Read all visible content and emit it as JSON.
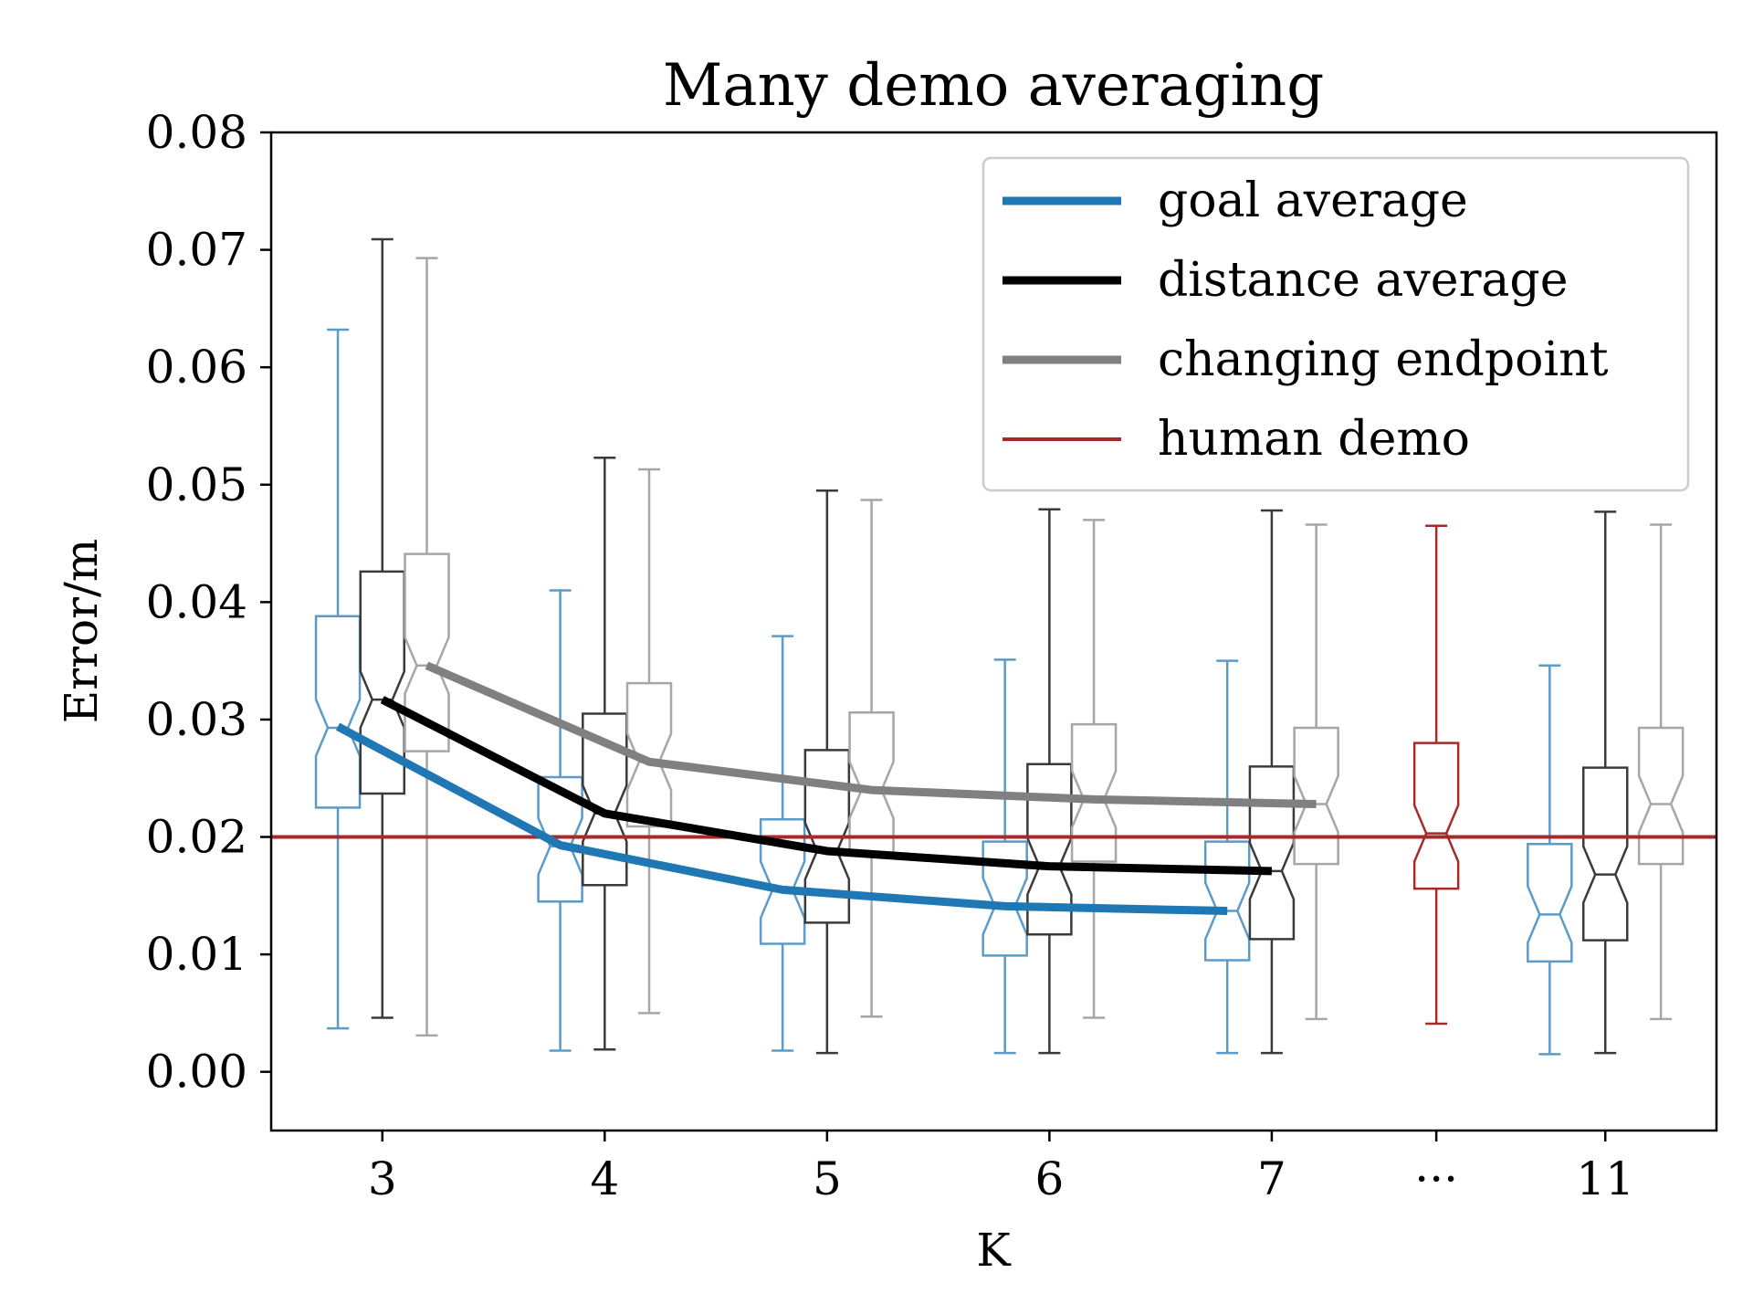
{
  "chart_data": {
    "type": "box",
    "title": "Many demo averaging",
    "xlabel": "K",
    "ylabel": "Error/m",
    "ylim": [
      -0.005,
      0.08
    ],
    "yticks": [
      0.0,
      0.01,
      0.02,
      0.03,
      0.04,
      0.05,
      0.06,
      0.07,
      0.08
    ],
    "ytick_labels": [
      "0.00",
      "0.01",
      "0.02",
      "0.03",
      "0.04",
      "0.05",
      "0.06",
      "0.07",
      "0.08"
    ],
    "x_categories": [
      "3",
      "4",
      "5",
      "6",
      "7",
      "···",
      "11"
    ],
    "x_positions": [
      0,
      1,
      2,
      3,
      4,
      4.74,
      5.5
    ],
    "xlim": [
      -0.5,
      6.0
    ],
    "legend": {
      "position": "top-right",
      "entries": [
        {
          "label": "goal average",
          "series": "goal"
        },
        {
          "label": "distance average",
          "series": "distance"
        },
        {
          "label": "changing endpoint",
          "series": "changing"
        },
        {
          "label": "human demo",
          "series": "human"
        }
      ]
    },
    "colors": {
      "goal": "#1f77b4",
      "distance": "#000000",
      "changing": "#808080",
      "human": "#a52a2a",
      "goal_box": "#5b9bc9",
      "distance_box": "#3a3a3a",
      "changing_box": "#a6a6a6"
    },
    "reference_line": {
      "label": "human demo",
      "y": 0.02
    },
    "series_lines": [
      {
        "name": "goal average",
        "key": "goal",
        "x": [
          -0.2,
          0.8,
          1.8,
          2.8,
          3.8
        ],
        "y": [
          0.0294,
          0.0193,
          0.0155,
          0.0141,
          0.0137
        ]
      },
      {
        "name": "distance average",
        "key": "distance",
        "x": [
          0,
          1,
          2,
          3,
          4
        ],
        "y": [
          0.0317,
          0.022,
          0.0188,
          0.0175,
          0.0171
        ]
      },
      {
        "name": "changing endpoint",
        "key": "changing",
        "x": [
          0.2,
          1.2,
          2.2,
          3.2,
          4.2
        ],
        "y": [
          0.0346,
          0.0264,
          0.024,
          0.0232,
          0.0228
        ]
      }
    ],
    "boxes": [
      {
        "group": "3",
        "key": "goal",
        "x": -0.2,
        "whislo": 0.0037,
        "q1": 0.0225,
        "median": 0.0293,
        "q3": 0.0388,
        "whishi": 0.0632
      },
      {
        "group": "3",
        "key": "distance",
        "x": 0,
        "whislo": 0.0046,
        "q1": 0.0237,
        "median": 0.0317,
        "q3": 0.0426,
        "whishi": 0.0709
      },
      {
        "group": "3",
        "key": "changing",
        "x": 0.2,
        "whislo": 0.0031,
        "q1": 0.0273,
        "median": 0.0346,
        "q3": 0.0441,
        "whishi": 0.0693
      },
      {
        "group": "4",
        "key": "goal",
        "x": 0.8,
        "whislo": 0.0018,
        "q1": 0.0145,
        "median": 0.0192,
        "q3": 0.0251,
        "whishi": 0.041
      },
      {
        "group": "4",
        "key": "distance",
        "x": 1,
        "whislo": 0.0019,
        "q1": 0.0159,
        "median": 0.022,
        "q3": 0.0305,
        "whishi": 0.0523
      },
      {
        "group": "4",
        "key": "changing",
        "x": 1.2,
        "whislo": 0.005,
        "q1": 0.0209,
        "median": 0.0264,
        "q3": 0.0331,
        "whishi": 0.0513
      },
      {
        "group": "5",
        "key": "goal",
        "x": 1.8,
        "whislo": 0.0018,
        "q1": 0.0109,
        "median": 0.0155,
        "q3": 0.0215,
        "whishi": 0.0371
      },
      {
        "group": "5",
        "key": "distance",
        "x": 2,
        "whislo": 0.0016,
        "q1": 0.0127,
        "median": 0.0188,
        "q3": 0.0274,
        "whishi": 0.0495
      },
      {
        "group": "5",
        "key": "changing",
        "x": 2.2,
        "whislo": 0.0047,
        "q1": 0.0184,
        "median": 0.024,
        "q3": 0.0306,
        "whishi": 0.0487
      },
      {
        "group": "6",
        "key": "goal",
        "x": 2.8,
        "whislo": 0.0016,
        "q1": 0.0099,
        "median": 0.0141,
        "q3": 0.0196,
        "whishi": 0.0351
      },
      {
        "group": "6",
        "key": "distance",
        "x": 3,
        "whislo": 0.0016,
        "q1": 0.0117,
        "median": 0.0175,
        "q3": 0.0262,
        "whishi": 0.0479
      },
      {
        "group": "6",
        "key": "changing",
        "x": 3.2,
        "whislo": 0.0046,
        "q1": 0.0179,
        "median": 0.0232,
        "q3": 0.0296,
        "whishi": 0.047
      },
      {
        "group": "7",
        "key": "goal",
        "x": 3.8,
        "whislo": 0.0016,
        "q1": 0.0095,
        "median": 0.0137,
        "q3": 0.0196,
        "whishi": 0.035
      },
      {
        "group": "7",
        "key": "distance",
        "x": 4,
        "whislo": 0.0016,
        "q1": 0.0113,
        "median": 0.0171,
        "q3": 0.026,
        "whishi": 0.0478
      },
      {
        "group": "7",
        "key": "changing",
        "x": 4.2,
        "whislo": 0.0045,
        "q1": 0.0177,
        "median": 0.0228,
        "q3": 0.0293,
        "whishi": 0.0466
      },
      {
        "group": "···",
        "key": "human",
        "x": 4.74,
        "whislo": 0.0041,
        "q1": 0.0156,
        "median": 0.0203,
        "q3": 0.028,
        "whishi": 0.0465
      },
      {
        "group": "11",
        "key": "goal",
        "x": 5.25,
        "whislo": 0.0015,
        "q1": 0.0094,
        "median": 0.0134,
        "q3": 0.0194,
        "whishi": 0.0346
      },
      {
        "group": "11",
        "key": "distance",
        "x": 5.5,
        "whislo": 0.0016,
        "q1": 0.0112,
        "median": 0.0168,
        "q3": 0.0259,
        "whishi": 0.0477
      },
      {
        "group": "11",
        "key": "changing",
        "x": 5.75,
        "whislo": 0.0045,
        "q1": 0.0177,
        "median": 0.0228,
        "q3": 0.0293,
        "whishi": 0.0466
      }
    ]
  }
}
